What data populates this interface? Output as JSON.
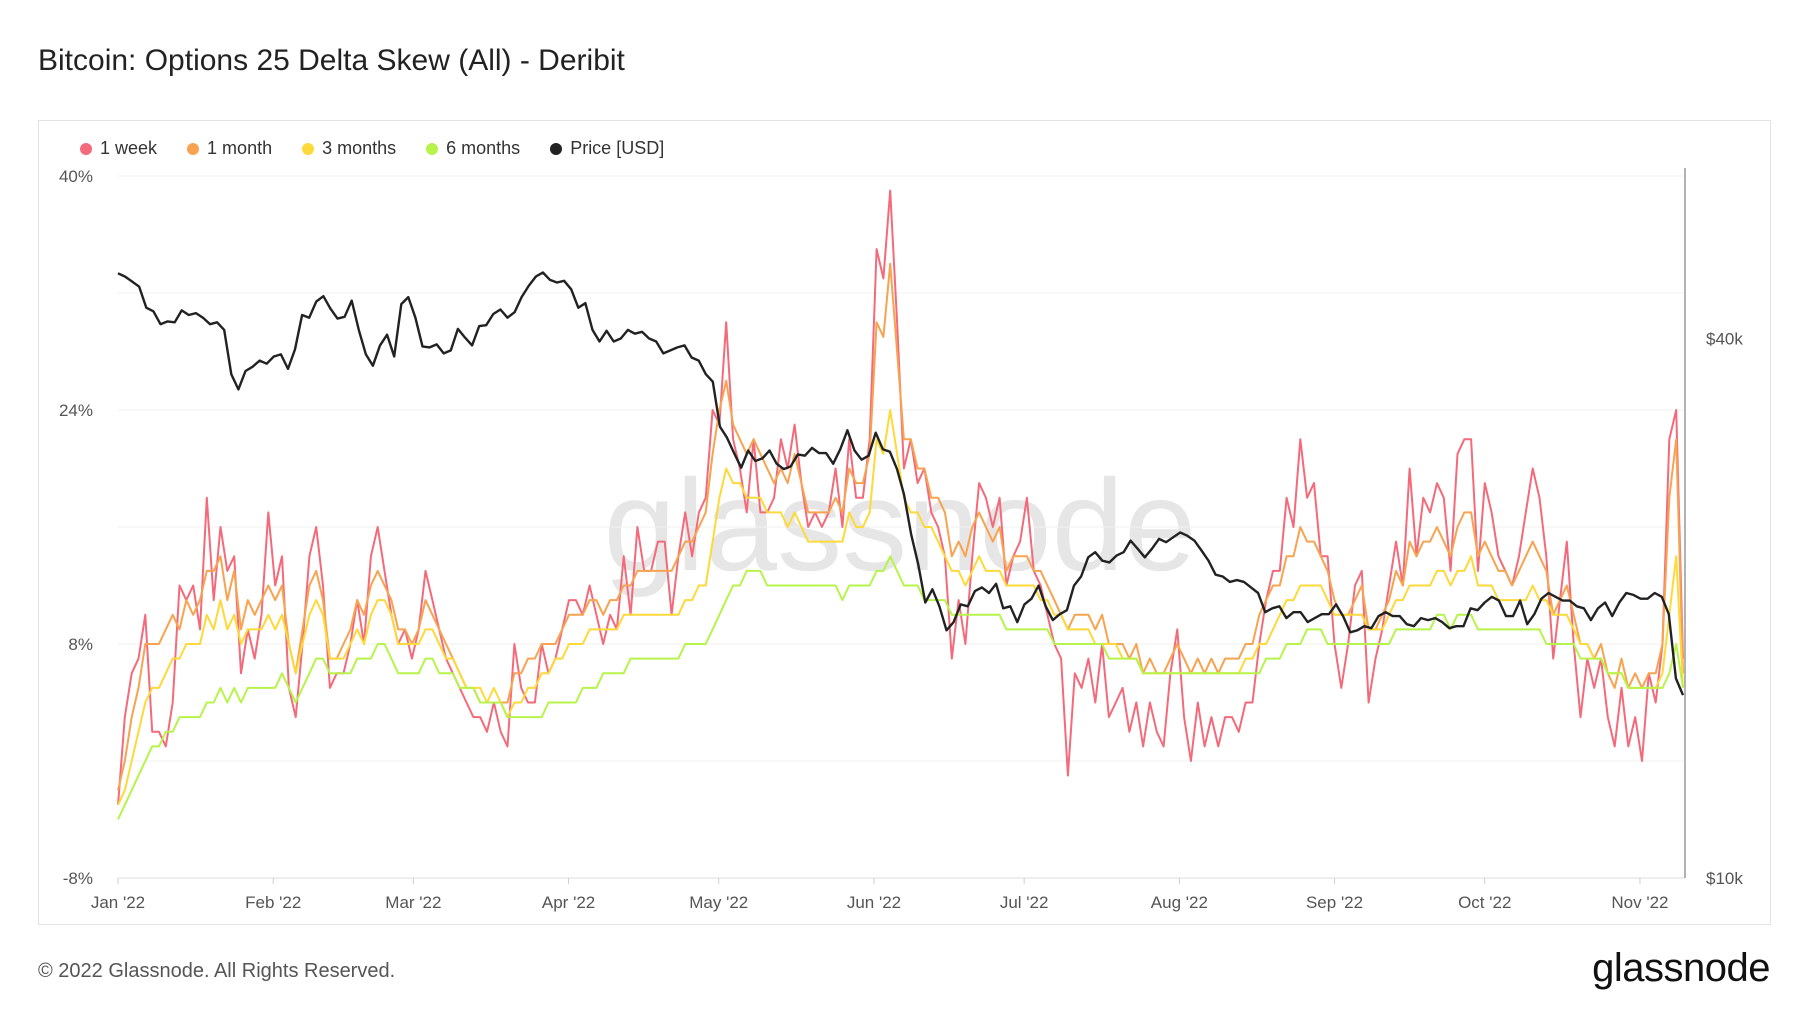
{
  "title": "Bitcoin: Options 25 Delta Skew (All) - Deribit",
  "footer": {
    "copyright": "© 2022 Glassnode. All Rights Reserved.",
    "brand": "glassnode"
  },
  "watermark": "glassnode",
  "chart_data": {
    "type": "line",
    "title": "Bitcoin: Options 25 Delta Skew (All) - Deribit",
    "xlabel": "",
    "ylabel": "",
    "x_range": [
      "2022-01-01",
      "2022-11-10"
    ],
    "x_ticks": [
      "Jan '22",
      "Feb '22",
      "Mar '22",
      "Apr '22",
      "May '22",
      "Jun '22",
      "Jul '22",
      "Aug '22",
      "Sep '22",
      "Oct '22",
      "Nov '22"
    ],
    "y_left": {
      "ticks": [
        "40%",
        "24%",
        "8%",
        "-8%"
      ],
      "range": [
        -8,
        40
      ],
      "unit": "%"
    },
    "y_right": {
      "ticks": [
        "$40k",
        "$10k"
      ],
      "scale": "log",
      "unit": "USD"
    },
    "legend_position": "top-left",
    "series": [
      {
        "name": "1 week",
        "color": "#f46a7a",
        "axis": "left",
        "values": [
          -3,
          3,
          6,
          7,
          10,
          2,
          2,
          1,
          4,
          12,
          11,
          12,
          9,
          18,
          11,
          16,
          13,
          14,
          6,
          9,
          7,
          10,
          17,
          12,
          14,
          5,
          3,
          8,
          14,
          16,
          12,
          5,
          6,
          6,
          8,
          11,
          8,
          14,
          16,
          13,
          10,
          8,
          9,
          7,
          9,
          13,
          11,
          9,
          7,
          6,
          5,
          4,
          3,
          3,
          2,
          4,
          2,
          1,
          8,
          5,
          4,
          4,
          8,
          6,
          7,
          9,
          11,
          11,
          10,
          12,
          10,
          8,
          10,
          9,
          14,
          10,
          16,
          13,
          13,
          15,
          15,
          10,
          14,
          17,
          14,
          17,
          18,
          24,
          23,
          30,
          22,
          20,
          17,
          22,
          17,
          17,
          18,
          22,
          20,
          23,
          19,
          16,
          17,
          16,
          17,
          20,
          16,
          22,
          18,
          18,
          22,
          35,
          33,
          39,
          30,
          20,
          22,
          19,
          20,
          17,
          16,
          14,
          7,
          11,
          8,
          14,
          19,
          18,
          16,
          18,
          12,
          14,
          15,
          18,
          13,
          12,
          10,
          8,
          7,
          -1,
          6,
          5,
          7,
          4,
          8,
          3,
          4,
          5,
          2,
          4,
          1,
          4,
          2,
          1,
          6,
          9,
          3,
          0,
          4,
          1,
          3,
          1,
          3,
          3,
          2,
          4,
          4,
          8,
          11,
          13,
          13,
          18,
          16,
          22,
          18,
          19,
          14,
          14,
          8,
          5,
          8,
          12,
          13,
          4,
          7,
          9,
          12,
          15,
          12,
          20,
          14,
          18,
          17,
          19,
          18,
          13,
          21,
          22,
          22,
          13,
          19,
          17,
          14,
          13,
          12,
          14,
          17,
          20,
          18,
          14,
          7,
          11,
          15,
          8,
          3,
          7,
          5,
          7,
          3,
          1,
          5,
          1,
          3,
          0,
          6,
          4,
          8,
          22,
          24,
          7
        ]
      },
      {
        "name": "1 month",
        "color": "#f7a34f",
        "axis": "left",
        "values": [
          -2,
          0,
          3,
          5,
          8,
          8,
          8,
          9,
          10,
          9,
          11,
          10,
          11,
          13,
          13,
          14,
          11,
          13,
          9,
          11,
          10,
          11,
          12,
          11,
          12,
          8,
          6,
          9,
          12,
          13,
          11,
          7,
          7,
          8,
          9,
          11,
          10,
          12,
          13,
          12,
          11,
          9,
          9,
          8,
          9,
          11,
          10,
          9,
          8,
          7,
          6,
          5,
          5,
          4,
          4,
          4,
          4,
          4,
          6,
          6,
          7,
          7,
          8,
          8,
          8,
          9,
          10,
          10,
          10,
          11,
          11,
          10,
          11,
          11,
          12,
          12,
          13,
          13,
          13,
          13,
          13,
          13,
          14,
          15,
          15,
          16,
          17,
          21,
          24,
          26,
          23,
          22,
          21,
          22,
          21,
          20,
          19,
          20,
          19,
          21,
          19,
          17,
          17,
          17,
          17,
          18,
          17,
          20,
          19,
          19,
          21,
          30,
          29,
          34,
          28,
          22,
          22,
          20,
          20,
          18,
          18,
          17,
          14,
          15,
          14,
          16,
          17,
          16,
          15,
          16,
          13,
          14,
          14,
          14,
          13,
          13,
          12,
          11,
          10,
          9,
          10,
          10,
          10,
          9,
          10,
          8,
          8,
          8,
          7,
          8,
          6,
          7,
          6,
          6,
          7,
          8,
          7,
          6,
          7,
          6,
          7,
          6,
          7,
          7,
          7,
          8,
          8,
          10,
          11,
          12,
          12,
          14,
          14,
          16,
          15,
          15,
          14,
          13,
          11,
          10,
          10,
          11,
          12,
          9,
          9,
          10,
          11,
          13,
          12,
          15,
          14,
          15,
          15,
          16,
          15,
          14,
          16,
          17,
          17,
          14,
          15,
          14,
          13,
          13,
          12,
          13,
          14,
          15,
          14,
          13,
          10,
          11,
          12,
          10,
          8,
          8,
          7,
          8,
          6,
          5,
          7,
          5,
          6,
          5,
          6,
          6,
          8,
          18,
          22,
          6
        ]
      },
      {
        "name": "3 months",
        "color": "#fdd93a",
        "axis": "left",
        "values": [
          -3,
          -2,
          0,
          2,
          4,
          5,
          5,
          6,
          7,
          7,
          8,
          8,
          8,
          10,
          9,
          11,
          9,
          10,
          8,
          9,
          9,
          9,
          10,
          9,
          10,
          8,
          6,
          8,
          10,
          11,
          10,
          7,
          7,
          7,
          8,
          9,
          8,
          10,
          11,
          11,
          10,
          8,
          8,
          8,
          8,
          9,
          9,
          8,
          7,
          7,
          6,
          5,
          5,
          5,
          4,
          5,
          4,
          3,
          4,
          4,
          5,
          5,
          6,
          6,
          7,
          7,
          8,
          8,
          8,
          9,
          9,
          9,
          9,
          9,
          10,
          10,
          10,
          10,
          10,
          10,
          10,
          10,
          10,
          11,
          11,
          12,
          12,
          15,
          18,
          20,
          19,
          19,
          18,
          18,
          18,
          17,
          17,
          17,
          16,
          17,
          16,
          15,
          15,
          15,
          15,
          15,
          15,
          17,
          16,
          16,
          17,
          22,
          21,
          24,
          21,
          18,
          17,
          17,
          16,
          16,
          15,
          14,
          13,
          13,
          12,
          13,
          14,
          13,
          13,
          13,
          12,
          12,
          12,
          12,
          12,
          11,
          11,
          10,
          10,
          9,
          9,
          9,
          9,
          8,
          8,
          8,
          8,
          7,
          7,
          7,
          6,
          6,
          6,
          6,
          6,
          6,
          6,
          6,
          6,
          6,
          6,
          6,
          6,
          6,
          6,
          7,
          7,
          8,
          8,
          9,
          10,
          11,
          11,
          12,
          12,
          12,
          12,
          11,
          10,
          10,
          10,
          10,
          10,
          9,
          9,
          9,
          10,
          11,
          11,
          12,
          12,
          12,
          12,
          13,
          13,
          12,
          13,
          13,
          14,
          12,
          12,
          12,
          11,
          11,
          11,
          11,
          11,
          12,
          11,
          11,
          10,
          10,
          10,
          9,
          8,
          8,
          7,
          7,
          6,
          6,
          6,
          5,
          5,
          5,
          5,
          5,
          6,
          10,
          14,
          5
        ]
      },
      {
        "name": "6 months",
        "color": "#b7f44b",
        "axis": "left",
        "values": [
          -4,
          -3,
          -2,
          -1,
          0,
          1,
          1,
          2,
          2,
          3,
          3,
          3,
          3,
          4,
          4,
          5,
          4,
          5,
          4,
          5,
          5,
          5,
          5,
          5,
          6,
          5,
          4,
          5,
          6,
          7,
          7,
          6,
          6,
          6,
          6,
          7,
          7,
          7,
          8,
          8,
          7,
          6,
          6,
          6,
          6,
          7,
          7,
          6,
          6,
          6,
          5,
          5,
          5,
          4,
          4,
          4,
          4,
          3,
          3,
          3,
          3,
          3,
          3,
          4,
          4,
          4,
          4,
          4,
          5,
          5,
          5,
          6,
          6,
          6,
          6,
          7,
          7,
          7,
          7,
          7,
          7,
          7,
          7,
          8,
          8,
          8,
          8,
          9,
          10,
          11,
          12,
          12,
          13,
          13,
          13,
          12,
          12,
          12,
          12,
          12,
          12,
          12,
          12,
          12,
          12,
          12,
          11,
          12,
          12,
          12,
          12,
          13,
          13,
          14,
          13,
          12,
          12,
          12,
          11,
          11,
          11,
          11,
          10,
          10,
          10,
          10,
          10,
          10,
          10,
          10,
          9,
          9,
          9,
          9,
          9,
          9,
          9,
          8,
          8,
          8,
          8,
          8,
          8,
          8,
          8,
          7,
          7,
          7,
          7,
          7,
          6,
          6,
          6,
          6,
          6,
          6,
          6,
          6,
          6,
          6,
          6,
          6,
          6,
          6,
          6,
          6,
          6,
          6,
          7,
          7,
          7,
          8,
          8,
          8,
          9,
          9,
          9,
          8,
          8,
          8,
          8,
          8,
          8,
          8,
          8,
          8,
          8,
          9,
          9,
          9,
          9,
          9,
          9,
          10,
          10,
          9,
          10,
          10,
          10,
          9,
          9,
          9,
          9,
          9,
          9,
          9,
          9,
          9,
          9,
          8,
          8,
          8,
          8,
          8,
          7,
          7,
          7,
          7,
          6,
          6,
          6,
          5,
          5,
          5,
          5,
          5,
          5,
          6,
          8,
          5
        ]
      },
      {
        "name": "Price [USD]",
        "color": "#222222",
        "axis": "right",
        "values": [
          47300,
          46900,
          46300,
          45700,
          43300,
          42900,
          41500,
          41800,
          41700,
          43000,
          42500,
          42700,
          42200,
          41500,
          41700,
          40900,
          36500,
          35100,
          36800,
          37200,
          37800,
          37500,
          38200,
          38400,
          37000,
          38900,
          42500,
          42200,
          44000,
          44600,
          43200,
          42100,
          42300,
          44100,
          40900,
          38400,
          37300,
          39300,
          40400,
          38200,
          43700,
          44500,
          42200,
          39200,
          39100,
          39400,
          38500,
          38800,
          41000,
          40100,
          39300,
          41300,
          41400,
          42600,
          43100,
          42200,
          42800,
          44500,
          45800,
          46900,
          47400,
          46500,
          46200,
          46400,
          45400,
          43300,
          43800,
          40900,
          39700,
          40800,
          39700,
          40000,
          40900,
          40500,
          40700,
          40000,
          39700,
          38500,
          38800,
          39100,
          39300,
          38100,
          37800,
          36500,
          35800,
          31900,
          31000,
          29800,
          28700,
          30000,
          29200,
          29400,
          30000,
          29000,
          28600,
          28800,
          29700,
          29600,
          30200,
          29800,
          29800,
          29000,
          30100,
          31600,
          30000,
          29300,
          29600,
          31400,
          30100,
          29900,
          28600,
          26800,
          24200,
          22400,
          20300,
          21000,
          20100,
          18900,
          19300,
          20200,
          20100,
          20900,
          21100,
          20800,
          21300,
          20000,
          20100,
          19300,
          20200,
          20500,
          21200,
          20100,
          19400,
          19700,
          19900,
          21200,
          21700,
          22800,
          23100,
          22600,
          22500,
          22900,
          23100,
          23800,
          23300,
          22800,
          23300,
          23900,
          23700,
          24000,
          24300,
          24100,
          23800,
          23200,
          22600,
          21800,
          21700,
          21400,
          21500,
          21400,
          21100,
          20800,
          19800,
          20000,
          20100,
          19500,
          19800,
          19800,
          19300,
          19500,
          19700,
          19700,
          20200,
          19600,
          18800,
          18900,
          19100,
          19000,
          19600,
          19800,
          19600,
          19600,
          19200,
          19100,
          19500,
          19400,
          19500,
          19300,
          19000,
          19100,
          19100,
          20000,
          19900,
          20300,
          20600,
          20400,
          19600,
          19600,
          20400,
          19200,
          19700,
          20500,
          20800,
          20600,
          20400,
          20400,
          20100,
          20000,
          19400,
          20000,
          20300,
          19600,
          20300,
          20800,
          20700,
          20500,
          20500,
          20800,
          20600,
          19700,
          16700,
          16000
        ]
      }
    ]
  }
}
